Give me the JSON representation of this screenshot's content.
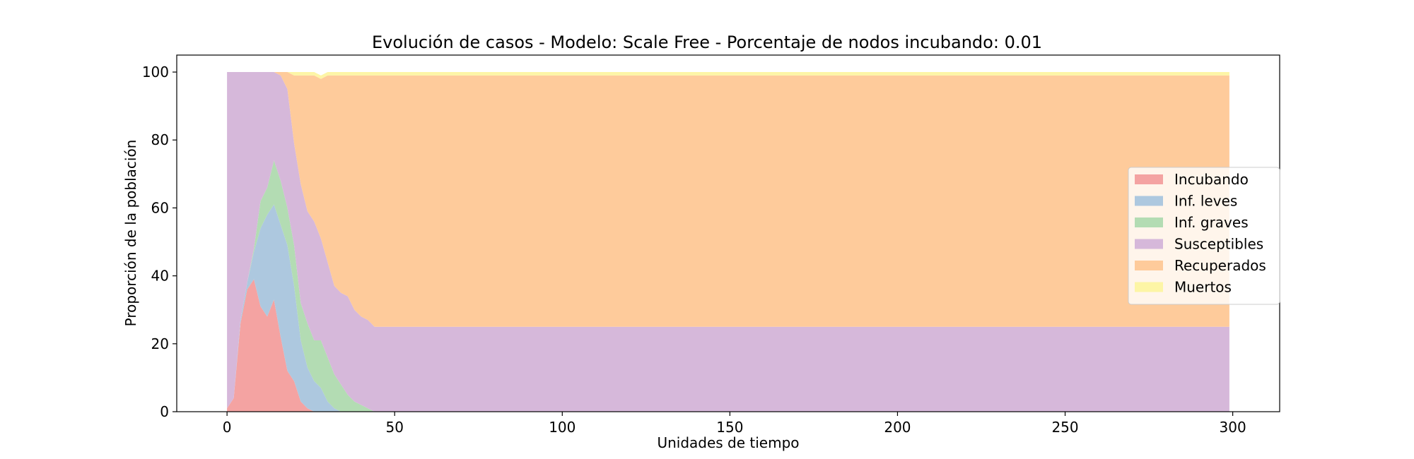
{
  "chart_data": {
    "type": "area",
    "stacked": true,
    "title": "Evolución de casos - Modelo: Scale Free - Porcentaje de nodos incubando: 0.01",
    "xlabel": "Unidades de tiempo",
    "ylabel": "Proporción de la población",
    "xlim": [
      -15,
      314
    ],
    "ylim": [
      0,
      105
    ],
    "xticks": [
      0,
      50,
      100,
      150,
      200,
      250,
      300
    ],
    "yticks": [
      0,
      20,
      40,
      60,
      80,
      100
    ],
    "legend": "center-right",
    "x": [
      0,
      2,
      4,
      6,
      8,
      10,
      12,
      14,
      16,
      18,
      20,
      22,
      24,
      26,
      28,
      30,
      32,
      34,
      36,
      38,
      40,
      42,
      44,
      46,
      50,
      60,
      100,
      200,
      299
    ],
    "series": [
      {
        "name": "Incubando",
        "color": "#f4a3a2",
        "values": [
          1,
          4,
          26,
          36,
          39,
          31,
          28,
          33,
          22,
          12,
          9,
          3,
          1,
          0,
          0,
          0,
          0,
          0,
          0,
          0,
          0,
          0,
          0,
          0,
          0,
          0,
          0,
          0,
          0
        ]
      },
      {
        "name": "Inf. leves",
        "color": "#adc8df",
        "values": [
          0,
          0,
          1,
          2,
          8,
          23,
          30,
          28,
          33,
          37,
          28,
          18,
          12,
          9,
          7,
          3,
          1,
          0,
          0,
          0,
          0,
          0,
          0,
          0,
          0,
          0,
          0,
          0,
          0
        ]
      },
      {
        "name": "Inf. graves",
        "color": "#b3dcb3",
        "values": [
          0,
          0,
          0,
          0,
          1,
          8,
          8,
          13,
          13,
          11,
          12,
          11,
          13,
          12,
          14,
          13,
          10,
          8,
          5,
          3,
          2,
          1,
          0,
          0,
          0,
          0,
          0,
          0,
          0
        ]
      },
      {
        "name": "Susceptibles",
        "color": "#d6b8da",
        "values": [
          99,
          96,
          73,
          62,
          52,
          38,
          34,
          26,
          31,
          35,
          30,
          35,
          33,
          35,
          30,
          28,
          26,
          27,
          29,
          27,
          26,
          26,
          25,
          25,
          25,
          25,
          25,
          25,
          25
        ]
      },
      {
        "name": "Recuperados",
        "color": "#fecb9b",
        "values": [
          0,
          0,
          0,
          0,
          0,
          0,
          0,
          0,
          1,
          5,
          20,
          32,
          40,
          43,
          47,
          55,
          62,
          64,
          65,
          69,
          71,
          72,
          74,
          74,
          74,
          74,
          74,
          74,
          74
        ]
      },
      {
        "name": "Muertos",
        "color": "#fdf5a6",
        "values": [
          0,
          0,
          0,
          0,
          0,
          0,
          0,
          0,
          0,
          0,
          1,
          1,
          1,
          1,
          1,
          1,
          1,
          1,
          1,
          1,
          1,
          1,
          1,
          1,
          1,
          1,
          1,
          1,
          1
        ]
      }
    ]
  }
}
